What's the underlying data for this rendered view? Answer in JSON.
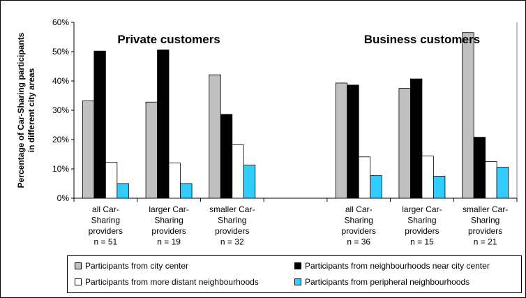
{
  "chart_data": {
    "type": "bar",
    "ylabel": "Percentage of Car-Sharing participants in different city areas",
    "ylim": [
      0,
      60
    ],
    "y_ticks": [
      "0%",
      "10%",
      "20%",
      "30%",
      "40%",
      "50%",
      "60%"
    ],
    "group_titles": [
      "Private customers",
      "Business customers"
    ],
    "categories": [
      [
        "all Car-",
        "Sharing",
        "providers",
        "n = 51"
      ],
      [
        "larger Car-",
        "Sharing",
        "providers",
        "n = 19"
      ],
      [
        "smaller Car-",
        "Sharing",
        "providers",
        "n = 32"
      ],
      [
        "",
        "",
        "",
        ""
      ],
      [
        "all Car-",
        "Sharing",
        "providers",
        "n = 36"
      ],
      [
        "larger Car-",
        "Sharing",
        "providers",
        "n = 15"
      ],
      [
        "smaller Car-",
        "Sharing",
        "providers",
        "n = 21"
      ]
    ],
    "series": [
      {
        "name": "Participants from city center",
        "color": "#c0c0c0",
        "values": [
          33.2,
          32.8,
          42.1,
          null,
          39.3,
          37.5,
          56.5
        ]
      },
      {
        "name": "Participants from neighbourhoods near city center",
        "color": "#000000",
        "values": [
          50.2,
          50.6,
          28.6,
          null,
          38.6,
          40.7,
          20.8
        ]
      },
      {
        "name": "Participants from more distant neighbourhoods",
        "color": "#ffffff",
        "values": [
          12.2,
          12.0,
          18.2,
          null,
          14.1,
          14.4,
          12.5
        ]
      },
      {
        "name": "Participants from peripheral neighbourhoods",
        "color": "#33ccff",
        "values": [
          5.0,
          5.0,
          11.3,
          null,
          7.7,
          7.5,
          10.6
        ]
      }
    ],
    "grid": false,
    "legend_position": "bottom"
  }
}
